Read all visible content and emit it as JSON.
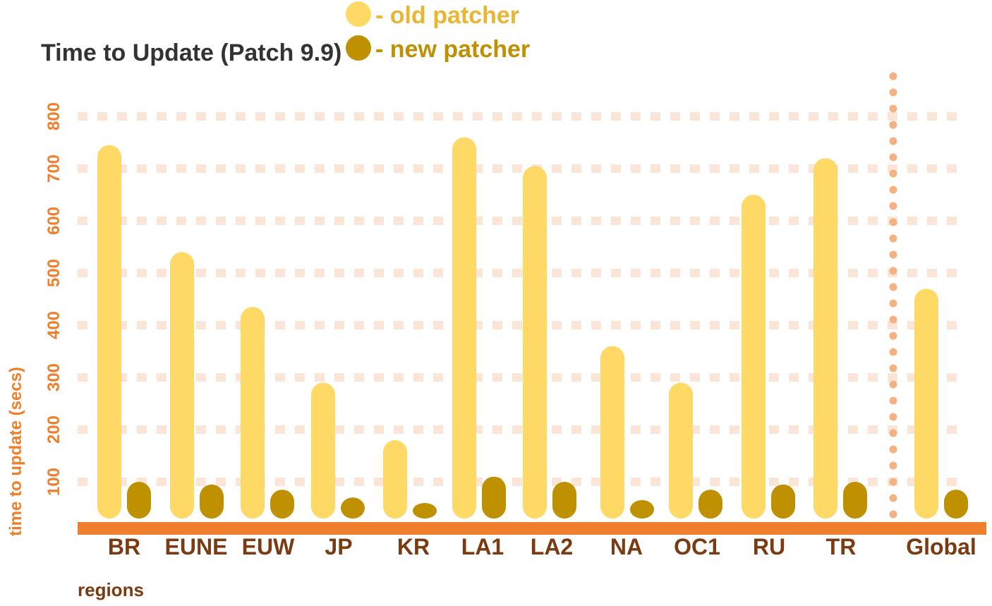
{
  "chart_data": {
    "type": "bar",
    "title": "Time to Update (Patch 9.9)",
    "ylabel": "time to update (secs)",
    "xlabel": "regions",
    "ylim": [
      0,
      800
    ],
    "yticks": [
      100,
      200,
      300,
      400,
      500,
      600,
      700,
      800
    ],
    "grid": true,
    "legend_position": "top-center",
    "categories": [
      "BR",
      "EUNE",
      "EUW",
      "JP",
      "KR",
      "LA1",
      "LA2",
      "NA",
      "OC1",
      "RU",
      "TR",
      "Global"
    ],
    "separator_after": "TR",
    "series": [
      {
        "name": "old patcher",
        "legend_label": "- old patcher",
        "color": "#fed966",
        "values": [
          745,
          540,
          435,
          290,
          180,
          760,
          705,
          360,
          290,
          650,
          720,
          470
        ]
      },
      {
        "name": "new patcher",
        "legend_label": "- new patcher",
        "color": "#bf9000",
        "values": [
          100,
          95,
          85,
          70,
          20,
          110,
          100,
          65,
          85,
          95,
          100,
          85
        ]
      }
    ],
    "colors": {
      "axis": "#ef7f2c",
      "grid": "#fbe5d6",
      "separator": "#f4b183",
      "tick_label_x": "#7a3a12",
      "tick_label_y": "#ef7f2c",
      "title": "#333333"
    }
  }
}
